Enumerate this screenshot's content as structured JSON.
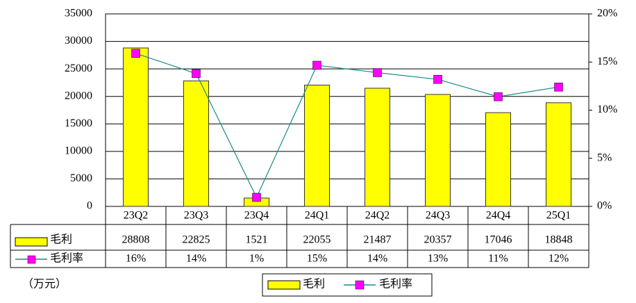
{
  "chart_data": {
    "type": "bar-line-table",
    "categories": [
      "23Q2",
      "23Q3",
      "23Q4",
      "24Q1",
      "24Q2",
      "24Q3",
      "24Q4",
      "25Q1"
    ],
    "series": [
      {
        "name": "毛利",
        "type": "bar",
        "color": "#ffff00",
        "values": [
          28808,
          22825,
          1521,
          22055,
          21487,
          20357,
          17046,
          18848
        ]
      },
      {
        "name": "毛利率",
        "type": "line",
        "axis": "y2",
        "color": "#1a8a8a",
        "marker_color": "#ff00ff",
        "values": [
          15.9,
          13.8,
          0.94,
          14.66,
          13.9,
          13.2,
          11.4,
          12.4
        ],
        "value_labels": [
          "16%",
          "14%",
          "1%",
          "15%",
          "14%",
          "13%",
          "11%",
          "12%"
        ]
      }
    ],
    "ylim": [
      0,
      35000
    ],
    "yticks": [
      0,
      5000,
      10000,
      15000,
      20000,
      25000,
      30000,
      35000
    ],
    "y2lim": [
      0,
      20
    ],
    "y2ticks": [
      {
        "value": 0,
        "label": "0%"
      },
      {
        "value": 5,
        "label": "5%"
      },
      {
        "value": 10,
        "label": "10%"
      },
      {
        "value": 15,
        "label": "15%"
      },
      {
        "value": 20,
        "label": "20%"
      }
    ],
    "unit_label": "（万元）",
    "grid": true
  }
}
